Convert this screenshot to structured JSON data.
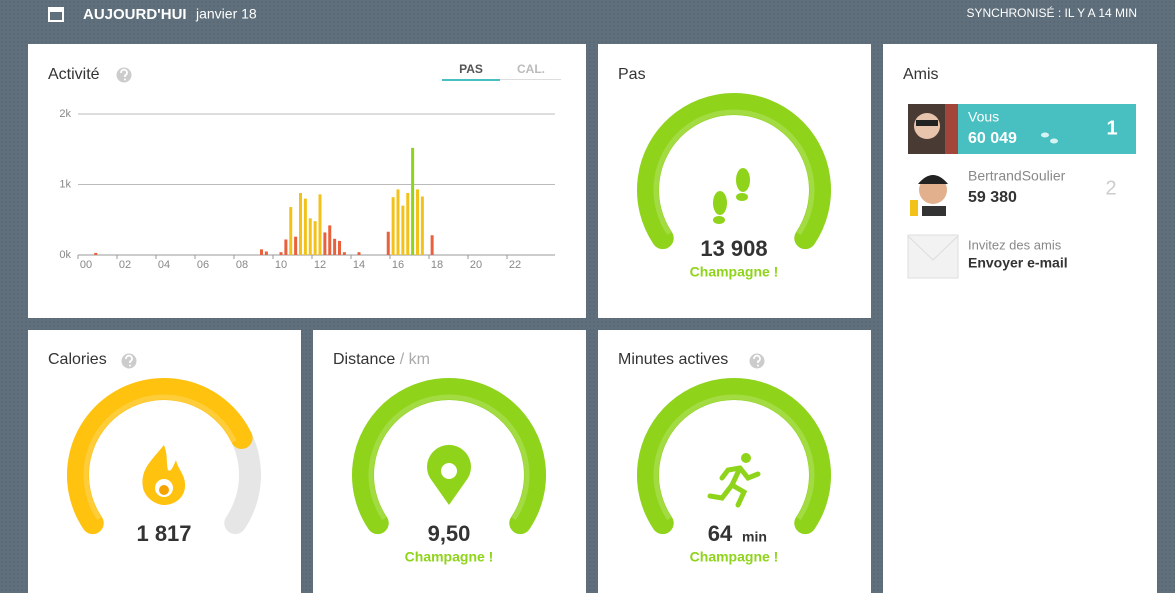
{
  "header": {
    "title": "AUJOURD'HUI",
    "date": "janvier 18",
    "sync": "SYNCHRONISÉ : IL Y A 14 MIN"
  },
  "activity": {
    "title": "Activité",
    "tabs": [
      "PAS",
      "CAL."
    ],
    "chart": {
      "type": "bar",
      "x": [
        0.5,
        9,
        9.25,
        10,
        10.25,
        10.5,
        10.75,
        11,
        11.25,
        11.5,
        11.75,
        12,
        12.25,
        12.5,
        12.75,
        13,
        13.25,
        14,
        15.5,
        15.75,
        16,
        16.25,
        16.5,
        16.75,
        17,
        17.25,
        17.75
      ],
      "values": [
        30,
        80,
        50,
        40,
        220,
        680,
        260,
        880,
        800,
        520,
        480,
        860,
        320,
        420,
        230,
        200,
        40,
        40,
        330,
        820,
        930,
        700,
        880,
        1520,
        930,
        830,
        280
      ],
      "colors": [
        "#e8603c",
        "#e8603c",
        "#e8603c",
        "#e8603c",
        "#e8603c",
        "#f2c21b",
        "#e8603c",
        "#f2c21b",
        "#f2c21b",
        "#f2c21b",
        "#f2c21b",
        "#f2c21b",
        "#e8603c",
        "#e8603c",
        "#e8603c",
        "#e8603c",
        "#e8603c",
        "#e8603c",
        "#e8603c",
        "#f2c21b",
        "#f2c21b",
        "#f2c21b",
        "#f2c21b",
        "#8fd41a",
        "#f2c21b",
        "#f2c21b",
        "#e8603c"
      ],
      "xlim": [
        0,
        24
      ],
      "xticks": [
        {
          "value": 0,
          "label": "00"
        },
        {
          "value": 2,
          "label": "02"
        },
        {
          "value": 4,
          "label": "04"
        },
        {
          "value": 6,
          "label": "06"
        },
        {
          "value": 8,
          "label": "08"
        },
        10,
        12,
        14,
        16,
        18,
        20,
        22
      ],
      "ylim": [
        0,
        2000
      ],
      "yticks": [
        {
          "value": 0,
          "label": "0k"
        },
        {
          "value": 1000,
          "label": "1k"
        },
        {
          "value": 2000,
          "label": "2k"
        }
      ],
      "grid": true
    }
  },
  "steps": {
    "title": "Pas",
    "value": "13 908",
    "status": "Champagne !",
    "progress": 1,
    "color": "#8fd41a"
  },
  "calories": {
    "title": "Calories",
    "value": "1 817",
    "progress": 0.76,
    "color": "#ffc20e"
  },
  "distance": {
    "title": "Distance",
    "unit": "/ km",
    "value": "9,50",
    "status": "Champagne !",
    "progress": 1,
    "color": "#8fd41a"
  },
  "active_minutes": {
    "title": "Minutes actives",
    "value": "64",
    "unit": "min",
    "status": "Champagne !",
    "progress": 1,
    "color": "#8fd41a"
  },
  "friends": {
    "title": "Amis",
    "list": [
      {
        "name": "Vous",
        "steps": "60 049",
        "rank": "1"
      },
      {
        "name": "BertrandSoulier",
        "steps": "59 380",
        "rank": "2"
      }
    ],
    "invite": {
      "title": "Invitez des amis",
      "action": "Envoyer e-mail"
    }
  }
}
